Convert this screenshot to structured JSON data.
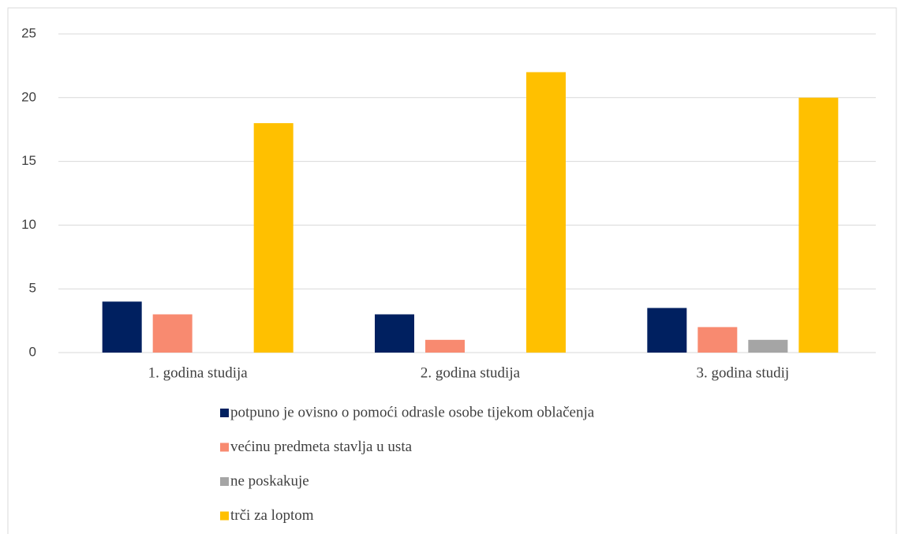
{
  "chart_data": {
    "type": "bar",
    "categories": [
      "1. godina studija",
      "2. godina studija",
      "3. godina studij"
    ],
    "series": [
      {
        "name": "potpuno je ovisno o pomoći odrasle osobe tijekom oblačenja",
        "color": "#002060",
        "values": [
          4,
          3,
          3.5
        ]
      },
      {
        "name": "većinu predmeta stavlja u usta",
        "color": "#f88a70",
        "values": [
          3,
          1,
          2
        ]
      },
      {
        "name": "ne poskakuje",
        "color": "#a5a5a5",
        "values": [
          0,
          0,
          1
        ]
      },
      {
        "name": "trči za loptom",
        "color": "#ffc000",
        "values": [
          18,
          22,
          20
        ]
      }
    ],
    "ylim": [
      0,
      25
    ],
    "yticks": [
      0,
      5,
      10,
      15,
      20,
      25
    ],
    "grid": true,
    "legend": "bottom"
  }
}
